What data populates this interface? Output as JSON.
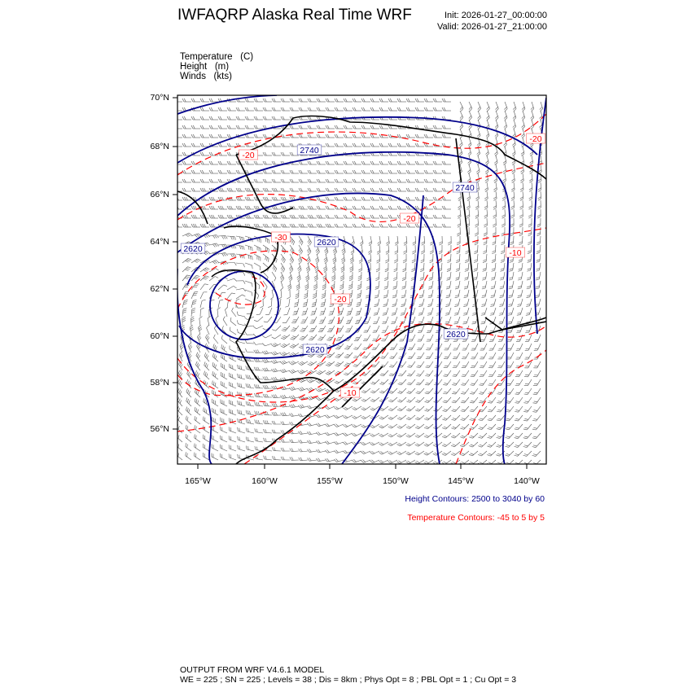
{
  "header": {
    "title": "IWFAQRP Alaska Real Time WRF",
    "init": "Init: 2026-01-27_00:00:00",
    "valid": "Valid: 2026-01-27_21:00:00"
  },
  "fields": [
    {
      "name": "Temperature",
      "unit": "(C)"
    },
    {
      "name": "Height",
      "unit": "(m)"
    },
    {
      "name": "Winds",
      "unit": "(kts)"
    }
  ],
  "map": {
    "lat_labels": [
      "70°N",
      "68°N",
      "66°N",
      "64°N",
      "62°N",
      "60°N",
      "58°N",
      "56°N"
    ],
    "lon_labels": [
      "165°W",
      "160°W",
      "155°W",
      "150°W",
      "145°W",
      "140°W"
    ],
    "height_contour_labels": [
      "2740",
      "2740",
      "2620",
      "2620",
      "2620",
      "2620"
    ],
    "temperature_contour_labels": [
      "-20",
      "-30",
      "-20",
      "-20",
      "-10",
      "-20",
      "-10"
    ],
    "colors": {
      "height": "#00008b",
      "temperature": "#ff0000",
      "coastline": "#000000",
      "wind_barbs": "#555555"
    }
  },
  "legend": {
    "height": "Height Contours: 2500 to 3040 by 60",
    "temperature": "Temperature Contours: -45 to 5 by 5"
  },
  "footer": {
    "line1": "OUTPUT FROM WRF V4.6.1 MODEL",
    "line2": "WE = 225 ; SN = 225 ; Levels = 38 ; Dis = 8km ; Phys Opt = 8 ; PBL Opt = 1 ; Cu Opt = 3"
  }
}
